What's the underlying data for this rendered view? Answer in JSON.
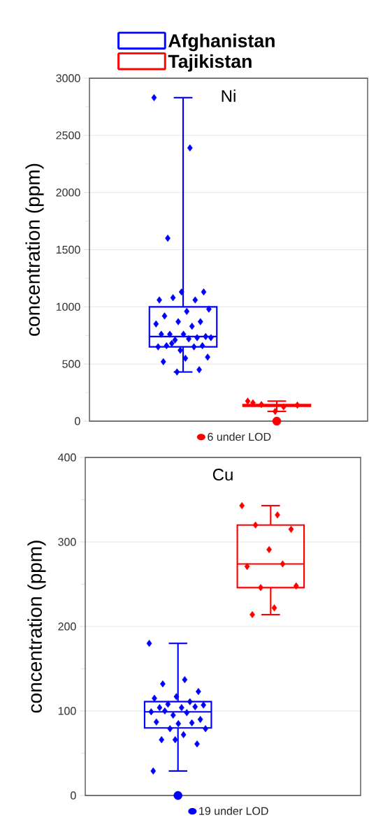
{
  "chart_data": [
    {
      "type": "box",
      "title": "Ni",
      "ylabel": "concentration (ppm)",
      "categories": [
        null,
        null
      ],
      "ylim": [
        0,
        3000
      ],
      "yticks": [
        0,
        {
          "value": 250,
          "label": null
        },
        500,
        {
          "value": 750,
          "label": null
        },
        1000,
        {
          "value": 1250,
          "label": null
        },
        1500,
        {
          "value": 1750,
          "label": null
        },
        2000,
        {
          "value": 2250,
          "label": null
        },
        2500,
        {
          "value": 2750,
          "label": null
        },
        3000
      ],
      "grid": "y",
      "legend": "top",
      "series": [
        {
          "name": "Afghanistan",
          "color": "#0000ff",
          "marker": "diamond",
          "boxes": [
            {
              "low": 430,
              "q1": 650,
              "median": 740,
              "q3": 1000,
              "high": 2830,
              "outliers": [
                2830,
                2390,
                1600,
                1130,
                1130,
                1060,
                1060,
                1080,
                980,
                960,
                920,
                870,
                870,
                850,
                830,
                760,
                740,
                760,
                760,
                730,
                710,
                730,
                720,
                660,
                660,
                620,
                650,
                650,
                680,
                560,
                550,
                520,
                450,
                430
              ]
            },
            null
          ]
        },
        {
          "name": "Tajikistan",
          "color": "#ff0000",
          "marker": "diamond",
          "boxes": [
            null,
            {
              "low": 85,
              "q1": 130,
              "median": 137,
              "q3": 145,
              "high": 175,
              "outliers": [
                175,
                125,
                145,
                140,
                85,
                160
              ]
            }
          ]
        },
        {
          "type": "scatter",
          "name": "6 under LOD",
          "color": "#ff0000",
          "marker": "circle",
          "values": [
            null,
            0
          ]
        }
      ]
    },
    {
      "type": "box",
      "title": "Cu",
      "ylabel": "concentration (ppm)",
      "categories": [
        null,
        null
      ],
      "ylim": [
        0,
        400
      ],
      "yticks": [
        0,
        {
          "value": 50,
          "label": null
        },
        100,
        {
          "value": 150,
          "label": null
        },
        200,
        {
          "value": 250,
          "label": null
        },
        300,
        {
          "value": 350,
          "label": null
        },
        400
      ],
      "grid": "y",
      "series": [
        {
          "color": "#0000ff",
          "marker": "diamond",
          "boxes": [
            {
              "low": 29,
              "q1": 80,
              "median": 99,
              "q3": 111,
              "high": 180,
              "outliers": [
                180,
                137,
                132,
                123,
                117,
                115,
                111,
                108,
                107,
                104,
                104,
                105,
                95,
                99,
                98,
                100,
                90,
                85,
                87,
                86,
                79,
                79,
                72,
                66,
                61,
                66,
                29
              ]
            },
            null
          ]
        },
        {
          "color": "#ff0000",
          "marker": "diamond",
          "boxes": [
            null,
            {
              "low": 214,
              "q1": 246,
              "median": 274,
              "q3": 320,
              "high": 343,
              "outliers": [
                343,
                332,
                320,
                315,
                291,
                271,
                274,
                246,
                248,
                222,
                214
              ]
            }
          ]
        },
        {
          "type": "scatter",
          "name": "19 under LOD",
          "color": "#0000ff",
          "marker": "circle",
          "values": [
            0,
            null
          ]
        }
      ]
    }
  ]
}
